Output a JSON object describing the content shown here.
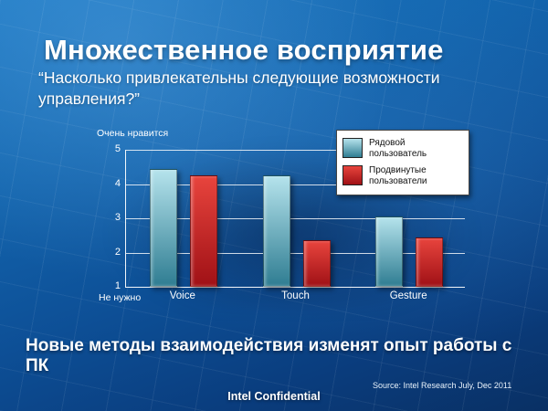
{
  "slide": {
    "title": "Множественное восприятие",
    "quote": "“Насколько привлекательны следующие возможности управления?”",
    "bottom_text": "Новые методы взаимодействия изменят опыт работы с ПК",
    "source": "Source: Intel Research July, Dec 2011",
    "footer": "Intel Confidential"
  },
  "colors": {
    "background_top": "#1d78c2",
    "background_bottom": "#093064",
    "regular_user_bar": "#4d9cab",
    "advanced_user_bar": "#cc2128"
  },
  "chart_data": {
    "type": "bar",
    "categories": [
      "Voice",
      "Touch",
      "Gesture"
    ],
    "series": [
      {
        "key": "regular",
        "name": "Рядовой пользователь",
        "color_top": "#b5e3ec",
        "color_bottom": "#2f7d92",
        "values": [
          4.4,
          4.2,
          3.0
        ]
      },
      {
        "key": "advanced",
        "name": "Продвинутые пользователи",
        "color_top": "#e8443d",
        "color_bottom": "#a01116",
        "values": [
          4.2,
          2.3,
          2.4
        ]
      }
    ],
    "y_top_label": "Очень нравится",
    "y_bottom_label": "Не нужно",
    "y_ticks": [
      5,
      4,
      3,
      2,
      1
    ],
    "ylim": [
      1,
      5
    ],
    "grid": true,
    "legend_position": "top-right"
  }
}
